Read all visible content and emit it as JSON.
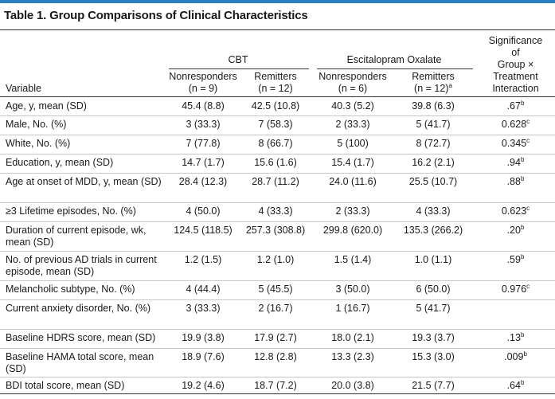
{
  "title": "Table 1. Group Comparisons of Clinical Characteristics",
  "header": {
    "variable": "Variable",
    "group1": "CBT",
    "group2": "Escitalopram Oxalate",
    "col1_l1": "Nonresponders",
    "col1_l2": "(n = 9)",
    "col2_l1": "Remitters",
    "col2_l2": "(n = 12)",
    "col3_l1": "Nonresponders",
    "col3_l2": "(n = 6)",
    "col4_l1": "Remitters",
    "col4_l2": "(n = 12)",
    "col4_sup": "a",
    "sig_l1": "Significance",
    "sig_l2": "of",
    "sig_l3": "Group ×",
    "sig_l4": "Treatment",
    "sig_l5": "Interaction"
  },
  "rows": [
    {
      "label": "Age, y, mean (SD)",
      "c1": "45.4 (8.8)",
      "c2": "42.5 (10.8)",
      "c3": "40.3 (5.2)",
      "c4": "39.8 (6.3)",
      "sig": ".67",
      "sup": "b"
    },
    {
      "label": "Male, No. (%)",
      "c1": "3 (33.3)",
      "c2": "7 (58.3)",
      "c3": "2 (33.3)",
      "c4": "5 (41.7)",
      "sig": "0.628",
      "sup": "c"
    },
    {
      "label": "White, No. (%)",
      "c1": "7 (77.8)",
      "c2": "8 (66.7)",
      "c3": "5 (100)",
      "c4": "8 (72.7)",
      "sig": "0.345",
      "sup": "c"
    },
    {
      "label": "Education, y, mean (SD)",
      "c1": "14.7 (1.7)",
      "c2": "15.6 (1.6)",
      "c3": "15.4 (1.7)",
      "c4": "16.2 (2.1)",
      "sig": ".94",
      "sup": "b"
    },
    {
      "label": "Age at onset of MDD, y, mean (SD)",
      "c1": "28.4 (12.3)",
      "c2": "28.7 (11.2)",
      "c3": "24.0 (11.6)",
      "c4": "25.5 (10.7)",
      "sig": ".88",
      "sup": "b"
    },
    {
      "label": "≥3 Lifetime episodes, No. (%)",
      "c1": "4 (50.0)",
      "c2": "4 (33.3)",
      "c3": "2 (33.3)",
      "c4": "4 (33.3)",
      "sig": "0.623",
      "sup": "c"
    },
    {
      "label": "Duration of current episode, wk, mean (SD)",
      "c1": "124.5 (118.5)",
      "c2": "257.3 (308.8)",
      "c3": "299.8 (620.0)",
      "c4": "135.3 (266.2)",
      "sig": ".20",
      "sup": "b"
    },
    {
      "label": "No. of previous AD trials in current episode, mean (SD)",
      "c1": "1.2 (1.5)",
      "c2": "1.2 (1.0)",
      "c3": "1.5 (1.4)",
      "c4": "1.0 (1.1)",
      "sig": ".59",
      "sup": "b"
    },
    {
      "label": "Melancholic subtype, No. (%)",
      "c1": "4 (44.4)",
      "c2": "5 (45.5)",
      "c3": "3 (50.0)",
      "c4": "6 (50.0)",
      "sig": "0.976",
      "sup": "c"
    },
    {
      "label": "Current anxiety disorder, No. (%)",
      "c1": "3 (33.3)",
      "c2": "2 (16.7)",
      "c3": "1 (16.7)",
      "c4": "5 (41.7)",
      "sig": "",
      "sup": ""
    },
    {
      "label": "Baseline HDRS score, mean (SD)",
      "c1": "19.9 (3.8)",
      "c2": "17.9 (2.7)",
      "c3": "18.0 (2.1)",
      "c4": "19.3 (3.7)",
      "sig": ".13",
      "sup": "b"
    },
    {
      "label": "Baseline HAMA total score, mean (SD)",
      "c1": "18.9 (7.6)",
      "c2": "12.8 (2.8)",
      "c3": "13.3 (2.3)",
      "c4": "15.3 (3.0)",
      "sig": ".009",
      "sup": "b"
    },
    {
      "label": "BDI total score, mean (SD)",
      "c1": "19.2 (4.6)",
      "c2": "18.7 (7.2)",
      "c3": "20.0 (3.8)",
      "c4": "21.5 (7.7)",
      "sig": ".64",
      "sup": "b"
    }
  ]
}
